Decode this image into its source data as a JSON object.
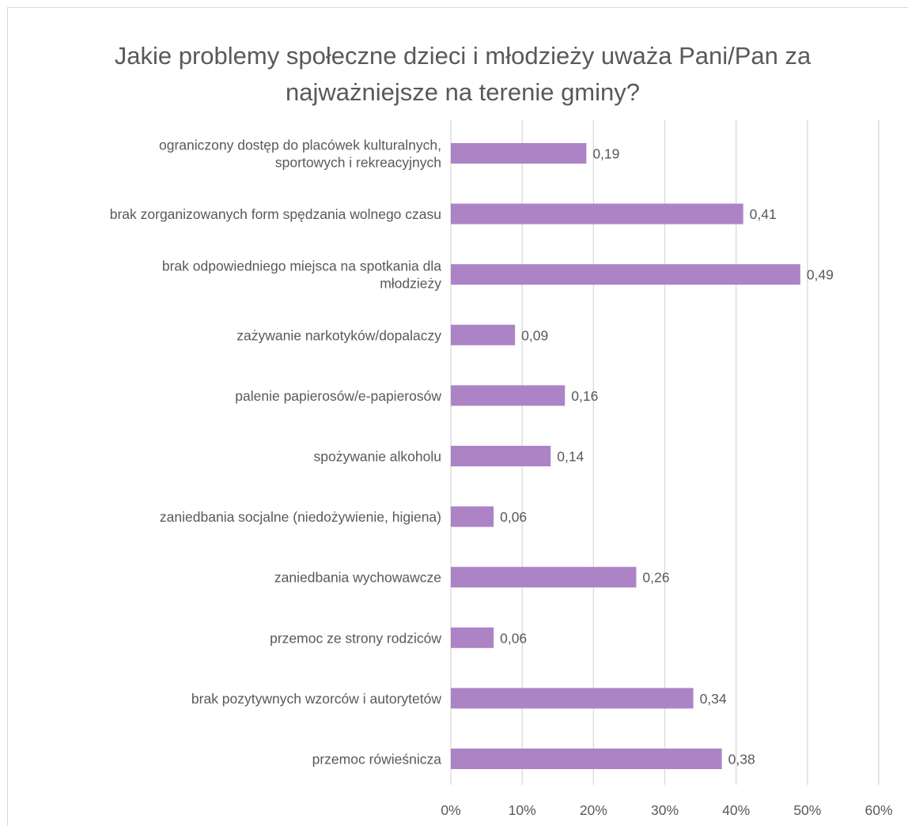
{
  "title": "Jakie problemy społeczne dzieci i młodzieży uważa Pani/Pan za najważniejsze na terenie gminy?",
  "chart_data": {
    "type": "bar",
    "orientation": "horizontal",
    "title": "Jakie problemy społeczne dzieci i młodzieży uważa Pani/Pan za najważniejsze na terenie gminy?",
    "categories": [
      "ograniczony dostęp do placówek kulturalnych, sportowych i rekreacyjnych",
      "brak zorganizowanych form spędzania wolnego czasu",
      "brak odpowiedniego miejsca na spotkania dla młodzieży",
      "zażywanie narkotyków/dopalaczy",
      "palenie papierosów/e-papierosów",
      "spożywanie alkoholu",
      "zaniedbania socjalne (niedożywienie, higiena)",
      "zaniedbania wychowawcze",
      "przemoc ze strony rodziców",
      "brak pozytywnych wzorców i autorytetów",
      "przemoc rówieśnicza"
    ],
    "category_label_lines": [
      [
        "ograniczony dostęp do placówek kulturalnych,",
        "sportowych i rekreacyjnych"
      ],
      [
        "brak zorganizowanych form spędzania wolnego czasu"
      ],
      [
        "brak odpowiedniego miejsca na spotkania dla",
        "młodzieży"
      ],
      [
        "zażywanie narkotyków/dopalaczy"
      ],
      [
        "palenie papierosów/e-papierosów"
      ],
      [
        "spożywanie alkoholu"
      ],
      [
        "zaniedbania socjalne (niedożywienie, higiena)"
      ],
      [
        "zaniedbania wychowawcze"
      ],
      [
        "przemoc ze strony rodziców"
      ],
      [
        "brak pozytywnych wzorców i autorytetów"
      ],
      [
        "przemoc rówieśnicza"
      ]
    ],
    "values": [
      0.19,
      0.41,
      0.49,
      0.09,
      0.16,
      0.14,
      0.06,
      0.26,
      0.06,
      0.34,
      0.38
    ],
    "data_labels": [
      "0,19",
      "0,41",
      "0,49",
      "0,09",
      "0,16",
      "0,14",
      "0,06",
      "0,26",
      "0,06",
      "0,34",
      "0,38"
    ],
    "xlim": [
      0,
      0.6
    ],
    "x_ticks": [
      0,
      0.1,
      0.2,
      0.3,
      0.4,
      0.5,
      0.6
    ],
    "x_tick_labels": [
      "0%",
      "10%",
      "20%",
      "30%",
      "40%",
      "50%",
      "60%"
    ],
    "xlabel": "",
    "ylabel": "",
    "grid": true,
    "legend": "none",
    "bar_color": "#ac84c6",
    "grid_color": "#d9d9d9",
    "text_color": "#595959"
  }
}
